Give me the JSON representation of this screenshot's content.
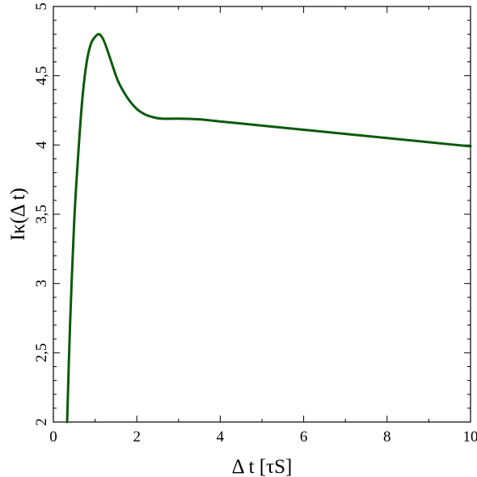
{
  "chart_data": {
    "type": "line",
    "title": "",
    "xlabel": "Δ t [τS]",
    "ylabel": "Iκ(Δ t)",
    "xlim": [
      0,
      10
    ],
    "ylim": [
      2,
      5
    ],
    "x_ticks": [
      "0",
      "2",
      "4",
      "6",
      "8",
      "10"
    ],
    "y_ticks": [
      "2",
      "2,5",
      "3",
      "3,5",
      "4",
      "4,5",
      "5"
    ],
    "grid": false,
    "line_color": "#0b5a0b",
    "series": [
      {
        "x": [
          0.33,
          0.4,
          0.5,
          0.6,
          0.7,
          0.8,
          0.9,
          1.0,
          1.1,
          1.2,
          1.3,
          1.4,
          1.5,
          1.6,
          1.8,
          2.0,
          2.2,
          2.4,
          2.6,
          3.0,
          3.5,
          4.0,
          5.0,
          6.0,
          7.0,
          8.0,
          9.0,
          10.0
        ],
        "y": [
          2.0,
          2.7,
          3.45,
          3.95,
          4.35,
          4.6,
          4.73,
          4.78,
          4.8,
          4.76,
          4.68,
          4.59,
          4.5,
          4.43,
          4.33,
          4.26,
          4.22,
          4.2,
          4.19,
          4.19,
          4.185,
          4.17,
          4.14,
          4.11,
          4.08,
          4.05,
          4.02,
          3.99
        ]
      }
    ]
  }
}
